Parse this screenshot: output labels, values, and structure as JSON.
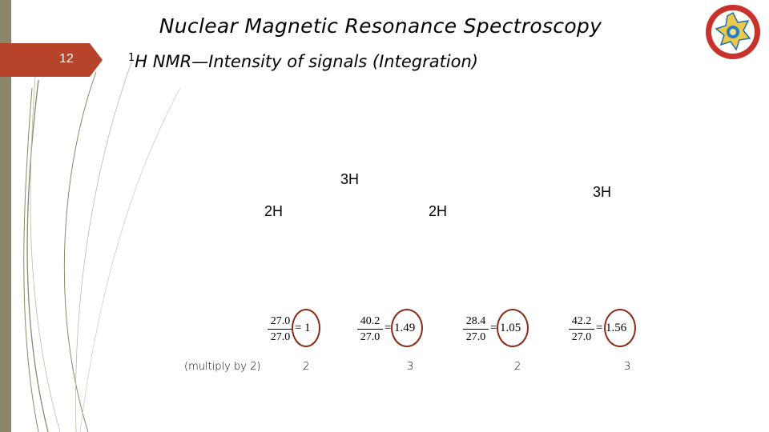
{
  "slide": {
    "number": "12",
    "title": "Nuclear Magnetic Resonance Spectroscopy",
    "subtitle_sup": "1",
    "subtitle_text": "H NMR—Intensity of signals (Integration)"
  },
  "peaks": [
    {
      "label": "2H"
    },
    {
      "label": "3H"
    },
    {
      "label": "2H"
    },
    {
      "label": "3H"
    }
  ],
  "ratios": [
    {
      "numerator": "27.0",
      "denominator": "27.0",
      "equals": "=",
      "result": "1"
    },
    {
      "numerator": "40.2",
      "denominator": "27.0",
      "equals": "=",
      "result": "1.49"
    },
    {
      "numerator": "28.4",
      "denominator": "27.0",
      "equals": "=",
      "result": "1.05"
    },
    {
      "numerator": "42.2",
      "denominator": "27.0",
      "equals": "=",
      "result": "1.56"
    }
  ],
  "multiply_note": "(multiply by 2)",
  "multiplied": [
    "2",
    "3",
    "2",
    "3"
  ],
  "colors": {
    "sidebar": "#8c8768",
    "slide_number_bg": "#b5442a",
    "circle": "#8a2a14"
  },
  "icons": {
    "logo": "university-seal-icon"
  }
}
